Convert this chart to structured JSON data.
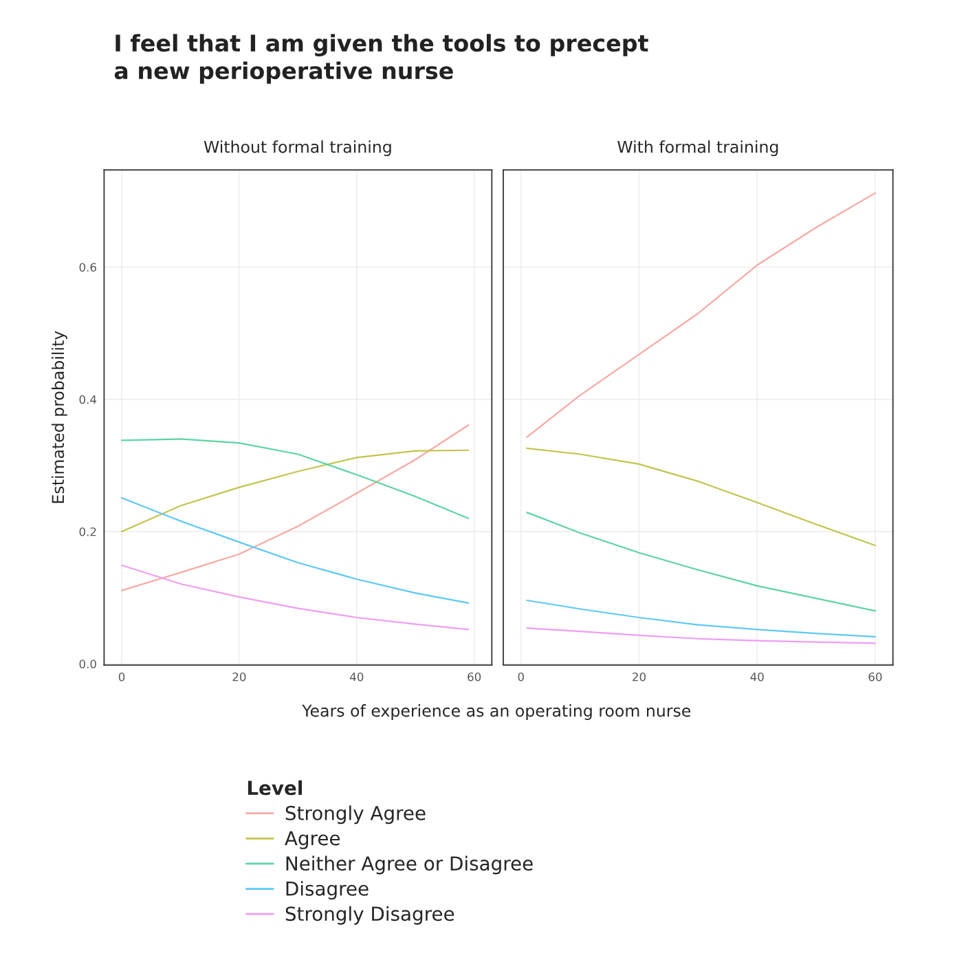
{
  "chart_data": [
    {
      "type": "line",
      "title": "Without formal training",
      "xlabel": "Years of experience as an operating room nurse",
      "ylabel": "Estimated probability",
      "legend_title": "Level",
      "legend": "bottom",
      "annotations": [
        "I feel that I am given the tools to precept\na new perioperative nurse"
      ],
      "x": [
        0,
        10,
        20,
        30,
        40,
        50,
        59
      ],
      "series": [
        {
          "name": "Strongly Agree",
          "color": "#f8a9a3",
          "values": [
            0.111,
            0.138,
            0.166,
            0.208,
            0.258,
            0.309,
            0.361
          ]
        },
        {
          "name": "Agree",
          "color": "#c3c34d",
          "values": [
            0.2,
            0.239,
            0.267,
            0.291,
            0.312,
            0.322,
            0.323
          ]
        },
        {
          "name": "Neither Agree or Disagree",
          "color": "#5dd3a3",
          "values": [
            0.338,
            0.34,
            0.334,
            0.317,
            0.286,
            0.253,
            0.22
          ]
        },
        {
          "name": "Disagree",
          "color": "#5dc8f7",
          "values": [
            0.251,
            0.216,
            0.184,
            0.153,
            0.128,
            0.107,
            0.092
          ]
        },
        {
          "name": "Strongly Disagree",
          "color": "#ef9df4",
          "values": [
            0.149,
            0.121,
            0.101,
            0.084,
            0.07,
            0.06,
            0.052
          ]
        }
      ],
      "xlim": [
        -3,
        63
      ],
      "xticks": [
        0,
        20,
        40,
        60
      ],
      "ylim": [
        -0.002,
        0.747
      ],
      "yticks": [
        {
          "value": 0,
          "label": "0.0"
        },
        0.2,
        0.4,
        0.6
      ],
      "grid": true
    },
    {
      "type": "line",
      "title": "With formal training",
      "x": [
        1,
        10,
        20,
        30,
        40,
        50,
        60
      ],
      "series": [
        {
          "color": "#f8a9a3",
          "values": [
            0.343,
            0.406,
            0.468,
            0.53,
            0.603,
            0.66,
            0.712
          ]
        },
        {
          "color": "#c3c34d",
          "values": [
            0.326,
            0.317,
            0.302,
            0.276,
            0.244,
            0.211,
            0.179
          ]
        },
        {
          "color": "#5dd3a3",
          "values": [
            0.229,
            0.198,
            0.168,
            0.142,
            0.118,
            0.099,
            0.08
          ]
        },
        {
          "color": "#5dc8f7",
          "values": [
            0.096,
            0.083,
            0.07,
            0.059,
            0.052,
            0.046,
            0.041
          ]
        },
        {
          "color": "#ef9df4",
          "values": [
            0.054,
            0.049,
            0.043,
            0.038,
            0.035,
            0.033,
            0.031
          ]
        }
      ],
      "xlim": [
        -3,
        63
      ],
      "xticks": [
        0,
        20,
        40,
        60
      ],
      "ylim": [
        -0.002,
        0.747
      ],
      "yticks": [
        0,
        0.2,
        0.4,
        0.6
      ],
      "grid": true,
      "tick_labels": "x"
    }
  ]
}
